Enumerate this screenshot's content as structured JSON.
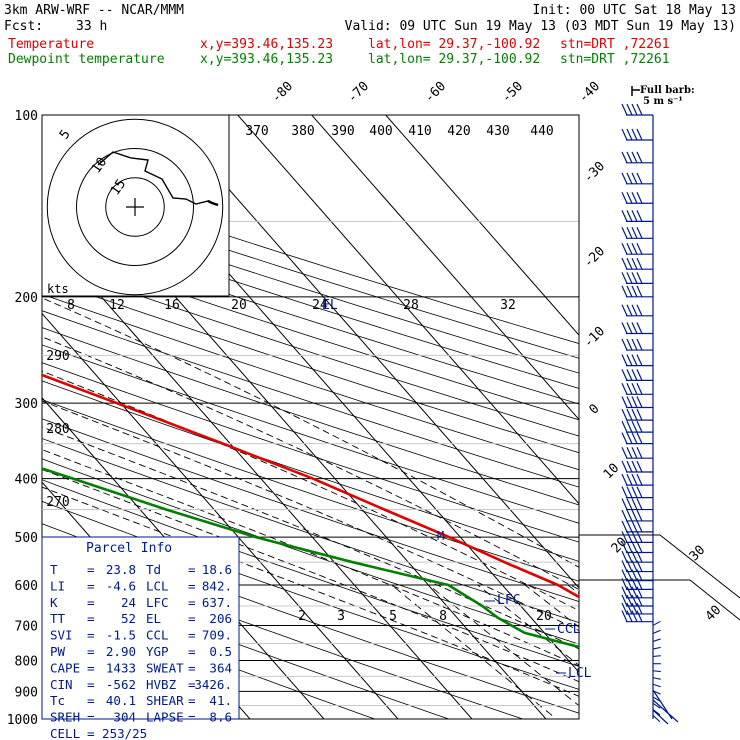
{
  "header": {
    "model": "3km ARW-WRF -- NCAR/MMM",
    "init": "Init: 00 UTC Sat 18 May 13",
    "fcst_label": "Fcst:",
    "fcst_value": "33 h",
    "valid": "Valid: 09 UTC Sun 19 May 13 (03 MDT Sun 19 May 13)",
    "temp_label": "Temperature",
    "dew_label": "Dewpoint temperature",
    "xy": "x,y=393.46,135.23",
    "latlon": "lat,lon= 29.37,-100.92",
    "stn": "stn=DRT ,72261"
  },
  "colors": {
    "temperature": "#e00000",
    "dewpoint": "#008000",
    "parcel": "#001a8c",
    "grid": "#000000"
  },
  "barb_key": {
    "line1": "Full barb:",
    "line2": "5 m s⁻¹"
  },
  "hodograph": {
    "units": "kts",
    "ring_labels": [
      "5",
      "10",
      "15"
    ],
    "speed_labels": [
      "8",
      "12",
      "16",
      "20",
      "24",
      "28",
      "32"
    ]
  },
  "parcel_info": {
    "title": "Parcel Info",
    "rows": [
      {
        "l1": "T",
        "v1": "23.8",
        "l2": "Td",
        "v2": "18.6"
      },
      {
        "l1": "LI",
        "v1": "-4.6",
        "l2": "LCL",
        "v2": "842."
      },
      {
        "l1": "K",
        "v1": "24",
        "l2": "LFC",
        "v2": "637."
      },
      {
        "l1": "TT",
        "v1": "52",
        "l2": "EL",
        "v2": "206"
      },
      {
        "l1": "SVI",
        "v1": "-1.5",
        "l2": "CCL",
        "v2": "709."
      },
      {
        "l1": "PW",
        "v1": "2.90",
        "l2": "YGP",
        "v2": "0.5"
      },
      {
        "l1": "CAPE",
        "v1": "1433",
        "l2": "SWEAT",
        "v2": "364"
      },
      {
        "l1": "CIN",
        "v1": "-562",
        "l2": "HVBZ",
        "v2": "3426."
      },
      {
        "l1": "Tc",
        "v1": "40.1",
        "l2": "SHEAR",
        "v2": "41."
      },
      {
        "l1": "SREH",
        "v1": "304",
        "l2": "LAPSE",
        "v2": "8.6"
      },
      {
        "l1": "CELL",
        "v1": "253/25",
        "l2": "",
        "v2": ""
      }
    ]
  },
  "level_labels": {
    "el": "EL",
    "lfc": "LFC",
    "ccl": "CCL",
    "lcl": "LCL"
  },
  "chart_data": {
    "type": "line",
    "pressure_levels": [
      100,
      200,
      300,
      400,
      500,
      600,
      700,
      800,
      900,
      1000
    ],
    "isotherms": [
      -80,
      -70,
      -60,
      -50,
      -40,
      -30,
      -20,
      -10,
      0,
      10,
      20,
      30,
      40
    ],
    "dry_adiabats": [
      370,
      380,
      390,
      400,
      410,
      420,
      430,
      440,
      290,
      280,
      270
    ],
    "mixing_ratios": [
      2,
      3,
      5,
      8,
      20
    ],
    "series": [
      {
        "name": "Temperature",
        "color": "#e00000",
        "points": [
          {
            "p": 990,
            "t": 23.8
          },
          {
            "p": 950,
            "t": 24.2
          },
          {
            "p": 925,
            "t": 25.5
          },
          {
            "p": 900,
            "t": 27.5
          },
          {
            "p": 880,
            "t": 29.5
          },
          {
            "p": 860,
            "t": 28.6
          },
          {
            "p": 820,
            "t": 24.6
          },
          {
            "p": 780,
            "t": 20.5
          },
          {
            "p": 740,
            "t": 16.8
          },
          {
            "p": 700,
            "t": 13.8
          },
          {
            "p": 650,
            "t": 10.0
          },
          {
            "p": 600,
            "t": 7.5
          },
          {
            "p": 550,
            "t": 3.0
          },
          {
            "p": 500,
            "t": -1.5
          },
          {
            "p": 450,
            "t": -7.0
          },
          {
            "p": 400,
            "t": -13.0
          },
          {
            "p": 350,
            "t": -21.0
          },
          {
            "p": 300,
            "t": -30.5
          },
          {
            "p": 250,
            "t": -42.0
          },
          {
            "p": 200,
            "t": -55.5
          },
          {
            "p": 175,
            "t": -64.0
          },
          {
            "p": 150,
            "t": -72.0
          },
          {
            "p": 130,
            "t": -77.0
          },
          {
            "p": 115,
            "t": -77.5
          },
          {
            "p": 100,
            "t": -79.0
          }
        ]
      },
      {
        "name": "Dewpoint temperature",
        "color": "#008000",
        "points": [
          {
            "p": 990,
            "t": 18.6
          },
          {
            "p": 950,
            "t": 19.0
          },
          {
            "p": 925,
            "t": 20.4
          },
          {
            "p": 900,
            "t": 19.3
          },
          {
            "p": 870,
            "t": 13.0
          },
          {
            "p": 850,
            "t": 9.8
          },
          {
            "p": 820,
            "t": 9.5
          },
          {
            "p": 800,
            "t": 8.4
          },
          {
            "p": 760,
            "t": 3.0
          },
          {
            "p": 720,
            "t": -2.7
          },
          {
            "p": 680,
            "t": -4.5
          },
          {
            "p": 650,
            "t": -5.2
          },
          {
            "p": 600,
            "t": -7.3
          },
          {
            "p": 550,
            "t": -17.5
          },
          {
            "p": 500,
            "t": -27.6
          },
          {
            "p": 450,
            "t": -36.5
          },
          {
            "p": 400,
            "t": -45.4
          },
          {
            "p": 370,
            "t": -51.4
          },
          {
            "p": 350,
            "t": -53.0
          },
          {
            "p": 300,
            "t": -55.0
          },
          {
            "p": 250,
            "t": -59.7
          },
          {
            "p": 210,
            "t": -72.0
          },
          {
            "p": 180,
            "t": -81.0
          },
          {
            "p": 160,
            "t": -88.0
          },
          {
            "p": 120,
            "t": -92.0
          },
          {
            "p": 100,
            "t": -92.6
          }
        ]
      }
    ],
    "wind_barbs_pressure": [
      100,
      110,
      120,
      130,
      140,
      150,
      160,
      170,
      180,
      190,
      200,
      215,
      230,
      245,
      260,
      275,
      290,
      305,
      320,
      335,
      350,
      370,
      390,
      410,
      430,
      450,
      470,
      490,
      510,
      530,
      550,
      570,
      590,
      610,
      630,
      650,
      670,
      690
    ]
  }
}
